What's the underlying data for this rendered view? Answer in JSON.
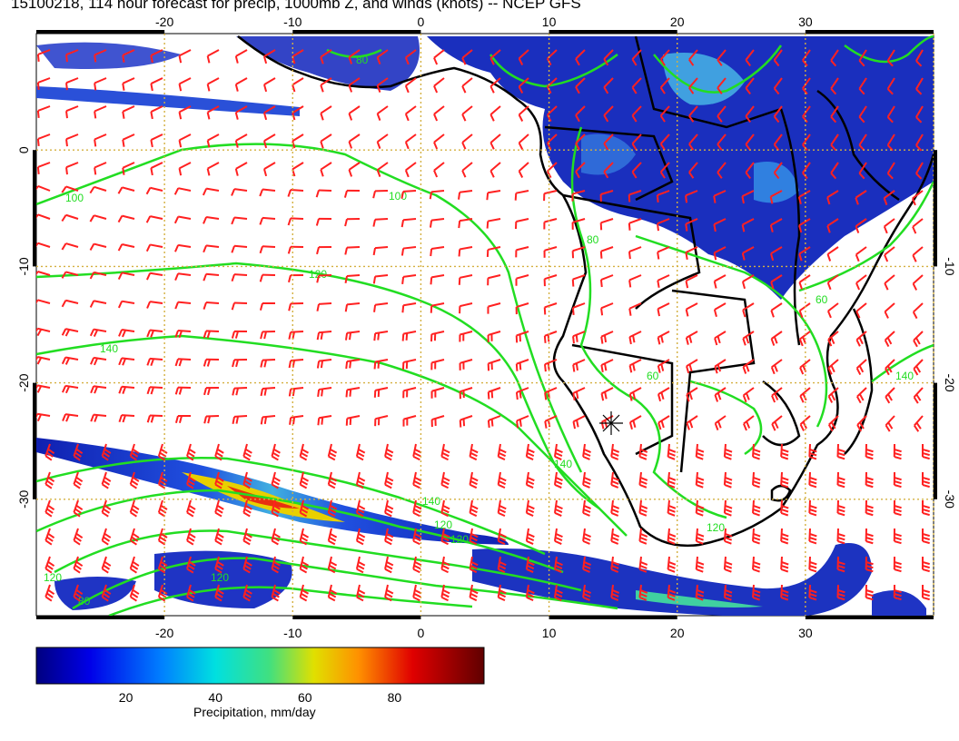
{
  "title": "15100218, 114 hour forecast for precip, 1000mb Z, and winds (knots) -- NCEP GFS",
  "map": {
    "lon_ticks_top": [
      "-20",
      "-10",
      "0",
      "10",
      "20",
      "30"
    ],
    "lon_ticks_bottom": [
      "-20",
      "-10",
      "0",
      "10",
      "20",
      "30"
    ],
    "lat_ticks_left": [
      "0",
      "-10",
      "-20",
      "-30"
    ],
    "lat_ticks_right": [
      "-10",
      "-20",
      "-30"
    ],
    "lon_range": [
      -30,
      40
    ],
    "lat_range": [
      -40,
      10
    ],
    "grid": "dotted",
    "contour_labels": [
      "100",
      "100",
      "120",
      "140",
      "140",
      "140",
      "120",
      "120",
      "120",
      "120",
      "80",
      "80",
      "60",
      "60",
      "140",
      "120",
      "80"
    ],
    "colors": {
      "contour": "#22dd22",
      "wind_barbs": "#ff2020",
      "coastline": "#000000",
      "grid": "#d4b040"
    }
  },
  "colorbar": {
    "ticks": [
      "20",
      "40",
      "60",
      "80"
    ],
    "range": [
      0,
      100
    ],
    "label": "Precipitation, mm/day"
  }
}
